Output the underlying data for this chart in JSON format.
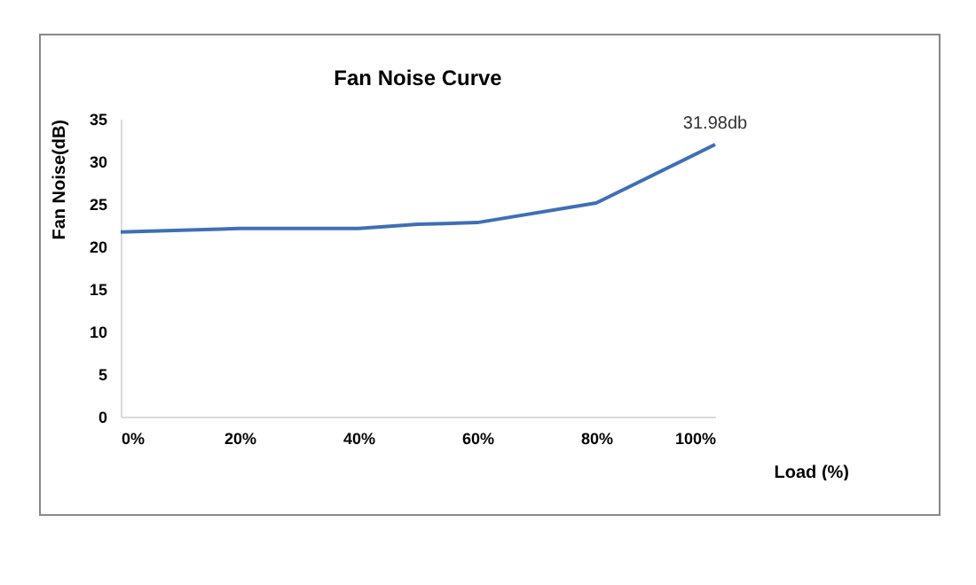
{
  "chart_data": {
    "type": "line",
    "title": "Fan Noise Curve",
    "xlabel": "Load (%)",
    "ylabel": "Fan Noise(dB)",
    "x": [
      0,
      20,
      40,
      50,
      60,
      80,
      100
    ],
    "series": [
      {
        "color": "#3f6fb5",
        "values": [
          21.7,
          22.1,
          22.1,
          22.6,
          22.8,
          25.1,
          31.98
        ]
      }
    ],
    "xlim": [
      0,
      100
    ],
    "xticks": [
      {
        "value": 0,
        "label": "0%"
      },
      {
        "value": 20,
        "label": "20%"
      },
      {
        "value": 40,
        "label": "40%"
      },
      {
        "value": 60,
        "label": "60%"
      },
      {
        "value": 80,
        "label": "80%"
      },
      {
        "value": 100,
        "label": "100%"
      }
    ],
    "ylim": [
      0,
      35
    ],
    "yticks": [
      0,
      5,
      10,
      15,
      20,
      25,
      30,
      35
    ],
    "annotations": [
      {
        "text": "31.98db",
        "x": 100,
        "y": 31.98
      }
    ],
    "grid": false,
    "marker": "none",
    "line_style": "solid"
  }
}
